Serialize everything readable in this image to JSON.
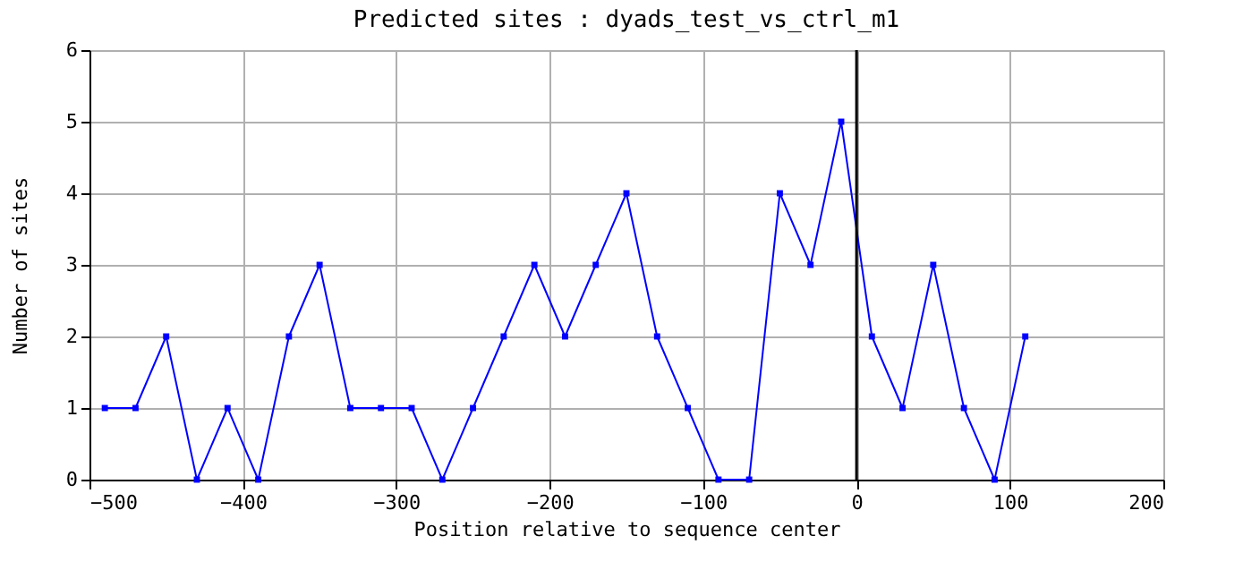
{
  "chart_data": {
    "type": "line",
    "title": "Predicted sites : dyads_test_vs_ctrl_m1",
    "xlabel": "Position relative to sequence center",
    "ylabel": "Number of sites",
    "x": [
      -490,
      -470,
      -450,
      -430,
      -410,
      -390,
      -370,
      -350,
      -330,
      -310,
      -290,
      -270,
      -250,
      -230,
      -210,
      -190,
      -170,
      -150,
      -130,
      -110,
      -90,
      -70,
      -50,
      -30,
      -10,
      10,
      30,
      50,
      70,
      90,
      110
    ],
    "series": [
      {
        "color": "#0000ff",
        "values": [
          1,
          1,
          2,
          0,
          1,
          0,
          2,
          3,
          1,
          1,
          1,
          0,
          1,
          2,
          3,
          2,
          3,
          4,
          2,
          1,
          0,
          0,
          4,
          3,
          5,
          2,
          1,
          3,
          1,
          0,
          2
        ]
      }
    ],
    "xlim": [
      -500,
      200
    ],
    "xticks": [
      -500,
      -400,
      -300,
      -200,
      -100,
      0,
      100,
      200
    ],
    "ylim": [
      0,
      6
    ],
    "yticks": [
      0,
      1,
      2,
      3,
      4,
      5,
      6
    ],
    "grid": true,
    "marker": "square",
    "line_style": "solid",
    "ref_lines": [
      {
        "axis": "x",
        "value": 0,
        "color": "#000000"
      }
    ]
  }
}
